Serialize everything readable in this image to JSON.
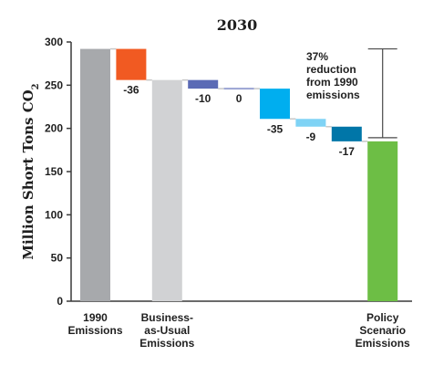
{
  "chart_data": {
    "type": "bar",
    "subtype": "waterfall",
    "title": "2030",
    "ylabel_main": "Million Short Tons CO",
    "ylabel_sub": "2",
    "ylim": [
      0,
      300
    ],
    "yticks": [
      "0",
      "50",
      "100",
      "150",
      "200",
      "250",
      "300"
    ],
    "steps": [
      {
        "kind": "total",
        "value": 292,
        "color": "#a7a9ac",
        "label_lines": [
          "1990",
          "Emissions"
        ]
      },
      {
        "kind": "delta",
        "value": -36,
        "label": "-36",
        "color": "#f15a22"
      },
      {
        "kind": "total",
        "value": 256,
        "color": "#d1d2d4",
        "label_lines": [
          "Business-",
          "as-Usual",
          "Emissions"
        ]
      },
      {
        "kind": "delta",
        "value": -10,
        "label": "-10",
        "color": "#5b6bb5"
      },
      {
        "kind": "delta",
        "value": 0,
        "label": "0",
        "color": "#9aa4d3"
      },
      {
        "kind": "delta",
        "value": -35,
        "label": "-35",
        "color": "#00aeef"
      },
      {
        "kind": "delta",
        "value": -9,
        "label": "-9",
        "color": "#7fd3f5"
      },
      {
        "kind": "delta",
        "value": -17,
        "label": "-17",
        "color": "#0076a8"
      },
      {
        "kind": "total",
        "value": 185,
        "color": "#6dbe45",
        "label_lines": [
          "Policy",
          "Scenario",
          "Emissions"
        ]
      }
    ],
    "annotation_lines": [
      "37%",
      "reduction",
      "from 1990",
      "emissions"
    ],
    "axis_color": "#3a3a3a",
    "connector_color": "#c8c8c8",
    "bracket_color": "#4a4a4a",
    "grid": false,
    "legend": "none"
  }
}
